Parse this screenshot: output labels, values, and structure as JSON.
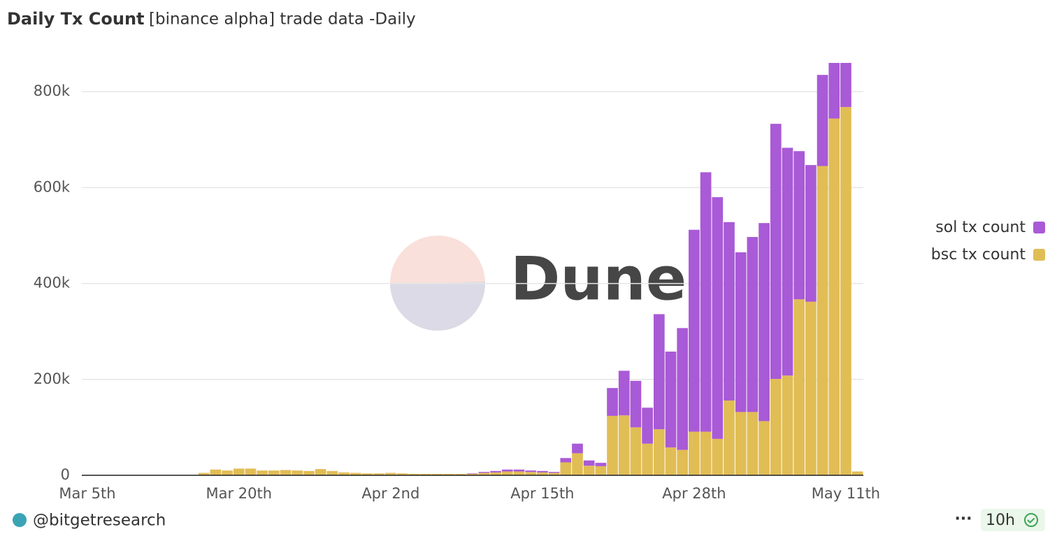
{
  "chart_data": {
    "type": "bar",
    "stacked": true,
    "title": "Daily Tx Count",
    "subtitle": "[binance alpha] trade data -Daily",
    "watermark": "Dune",
    "categories": [
      "Mar 5th",
      null,
      null,
      null,
      null,
      null,
      null,
      null,
      null,
      null,
      null,
      null,
      null,
      null,
      null,
      "Mar 20th",
      null,
      null,
      null,
      null,
      null,
      null,
      null,
      null,
      null,
      null,
      null,
      null,
      "Apr 2nd",
      null,
      null,
      null,
      null,
      null,
      null,
      null,
      null,
      null,
      null,
      null,
      null,
      "Apr 15th",
      null,
      null,
      null,
      null,
      null,
      null,
      null,
      null,
      null,
      null,
      null,
      null,
      "Apr 28th",
      null,
      null,
      null,
      null,
      null,
      null,
      null,
      null,
      null,
      null,
      null,
      null,
      "May 11th",
      null
    ],
    "series": [
      {
        "name": "sol tx count",
        "color": "#a95ad6",
        "values": [
          0,
          0,
          0,
          0,
          0,
          0,
          0,
          0,
          0,
          0,
          0,
          0,
          0,
          0,
          0,
          0,
          0,
          0,
          0,
          0,
          0,
          0,
          0,
          0,
          0,
          0,
          0,
          0,
          0,
          0,
          0,
          0,
          0,
          0,
          0,
          1000,
          2000,
          3000,
          4000,
          4000,
          3000,
          3000,
          2000,
          9000,
          20000,
          11000,
          7000,
          58000,
          93000,
          97000,
          75000,
          240000,
          200000,
          254000,
          421000,
          541000,
          504000,
          372000,
          333000,
          365000,
          413000,
          532000,
          475000,
          309000,
          285000,
          190000,
          116000,
          92000,
          0
        ]
      },
      {
        "name": "bsc tx count",
        "color": "#e1bd55",
        "values": [
          0,
          0,
          0,
          0,
          0,
          0,
          0,
          0,
          0,
          0,
          0,
          0,
          5000,
          12000,
          10000,
          14000,
          14000,
          10000,
          10000,
          11000,
          10000,
          9000,
          13000,
          9000,
          6000,
          5000,
          4000,
          4000,
          5000,
          4000,
          3000,
          3000,
          3000,
          3000,
          3000,
          3000,
          5000,
          6000,
          8000,
          8000,
          7000,
          6000,
          5000,
          27000,
          46000,
          20000,
          19000,
          124000,
          125000,
          100000,
          66000,
          96000,
          58000,
          53000,
          91000,
          91000,
          76000,
          156000,
          132000,
          132000,
          113000,
          201000,
          208000,
          367000,
          362000,
          645000,
          744000,
          768000,
          8000
        ]
      }
    ],
    "ylim": [
      0,
      860000
    ],
    "yticks": [
      0,
      {
        "value": 200000,
        "label": "200k"
      },
      {
        "value": 400000,
        "label": "400k"
      },
      {
        "value": 600000,
        "label": "600k"
      },
      {
        "value": 800000,
        "label": "800k"
      }
    ],
    "grid": true,
    "legend": "right"
  },
  "footer": {
    "author": "@bitgetresearch",
    "refresh": "10h"
  }
}
